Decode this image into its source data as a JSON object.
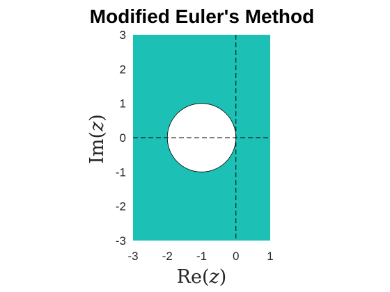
{
  "chart_data": {
    "type": "area",
    "title": "Modified Euler's Method",
    "xlabel": {
      "fn": "Re",
      "open": "(",
      "var": "z",
      "close": ")"
    },
    "ylabel": {
      "fn": "Im",
      "open": "(",
      "var": "z",
      "close": ")"
    },
    "xlim": [
      -3,
      1
    ],
    "ylim": [
      -3,
      3
    ],
    "xticks": [
      -3,
      -2,
      -1,
      0,
      1
    ],
    "yticks": [
      -3,
      -2,
      -1,
      0,
      1,
      2,
      3
    ],
    "xtick_labels": [
      "-3",
      "-2",
      "-1",
      "0",
      "1"
    ],
    "ytick_labels": [
      "-3",
      "-2",
      "-1",
      "0",
      "1",
      "2",
      "3"
    ],
    "fill_color": "#1cc0b4",
    "region": {
      "description_value": "stability region complement",
      "excluded_circle": {
        "center": [
          -1,
          0
        ],
        "radius": 1
      }
    },
    "reference_lines": [
      {
        "orientation": "horizontal",
        "value": 0,
        "style": "dashed"
      },
      {
        "orientation": "vertical",
        "value": 0,
        "style": "dashed"
      }
    ],
    "grid": false,
    "legend": "none"
  }
}
